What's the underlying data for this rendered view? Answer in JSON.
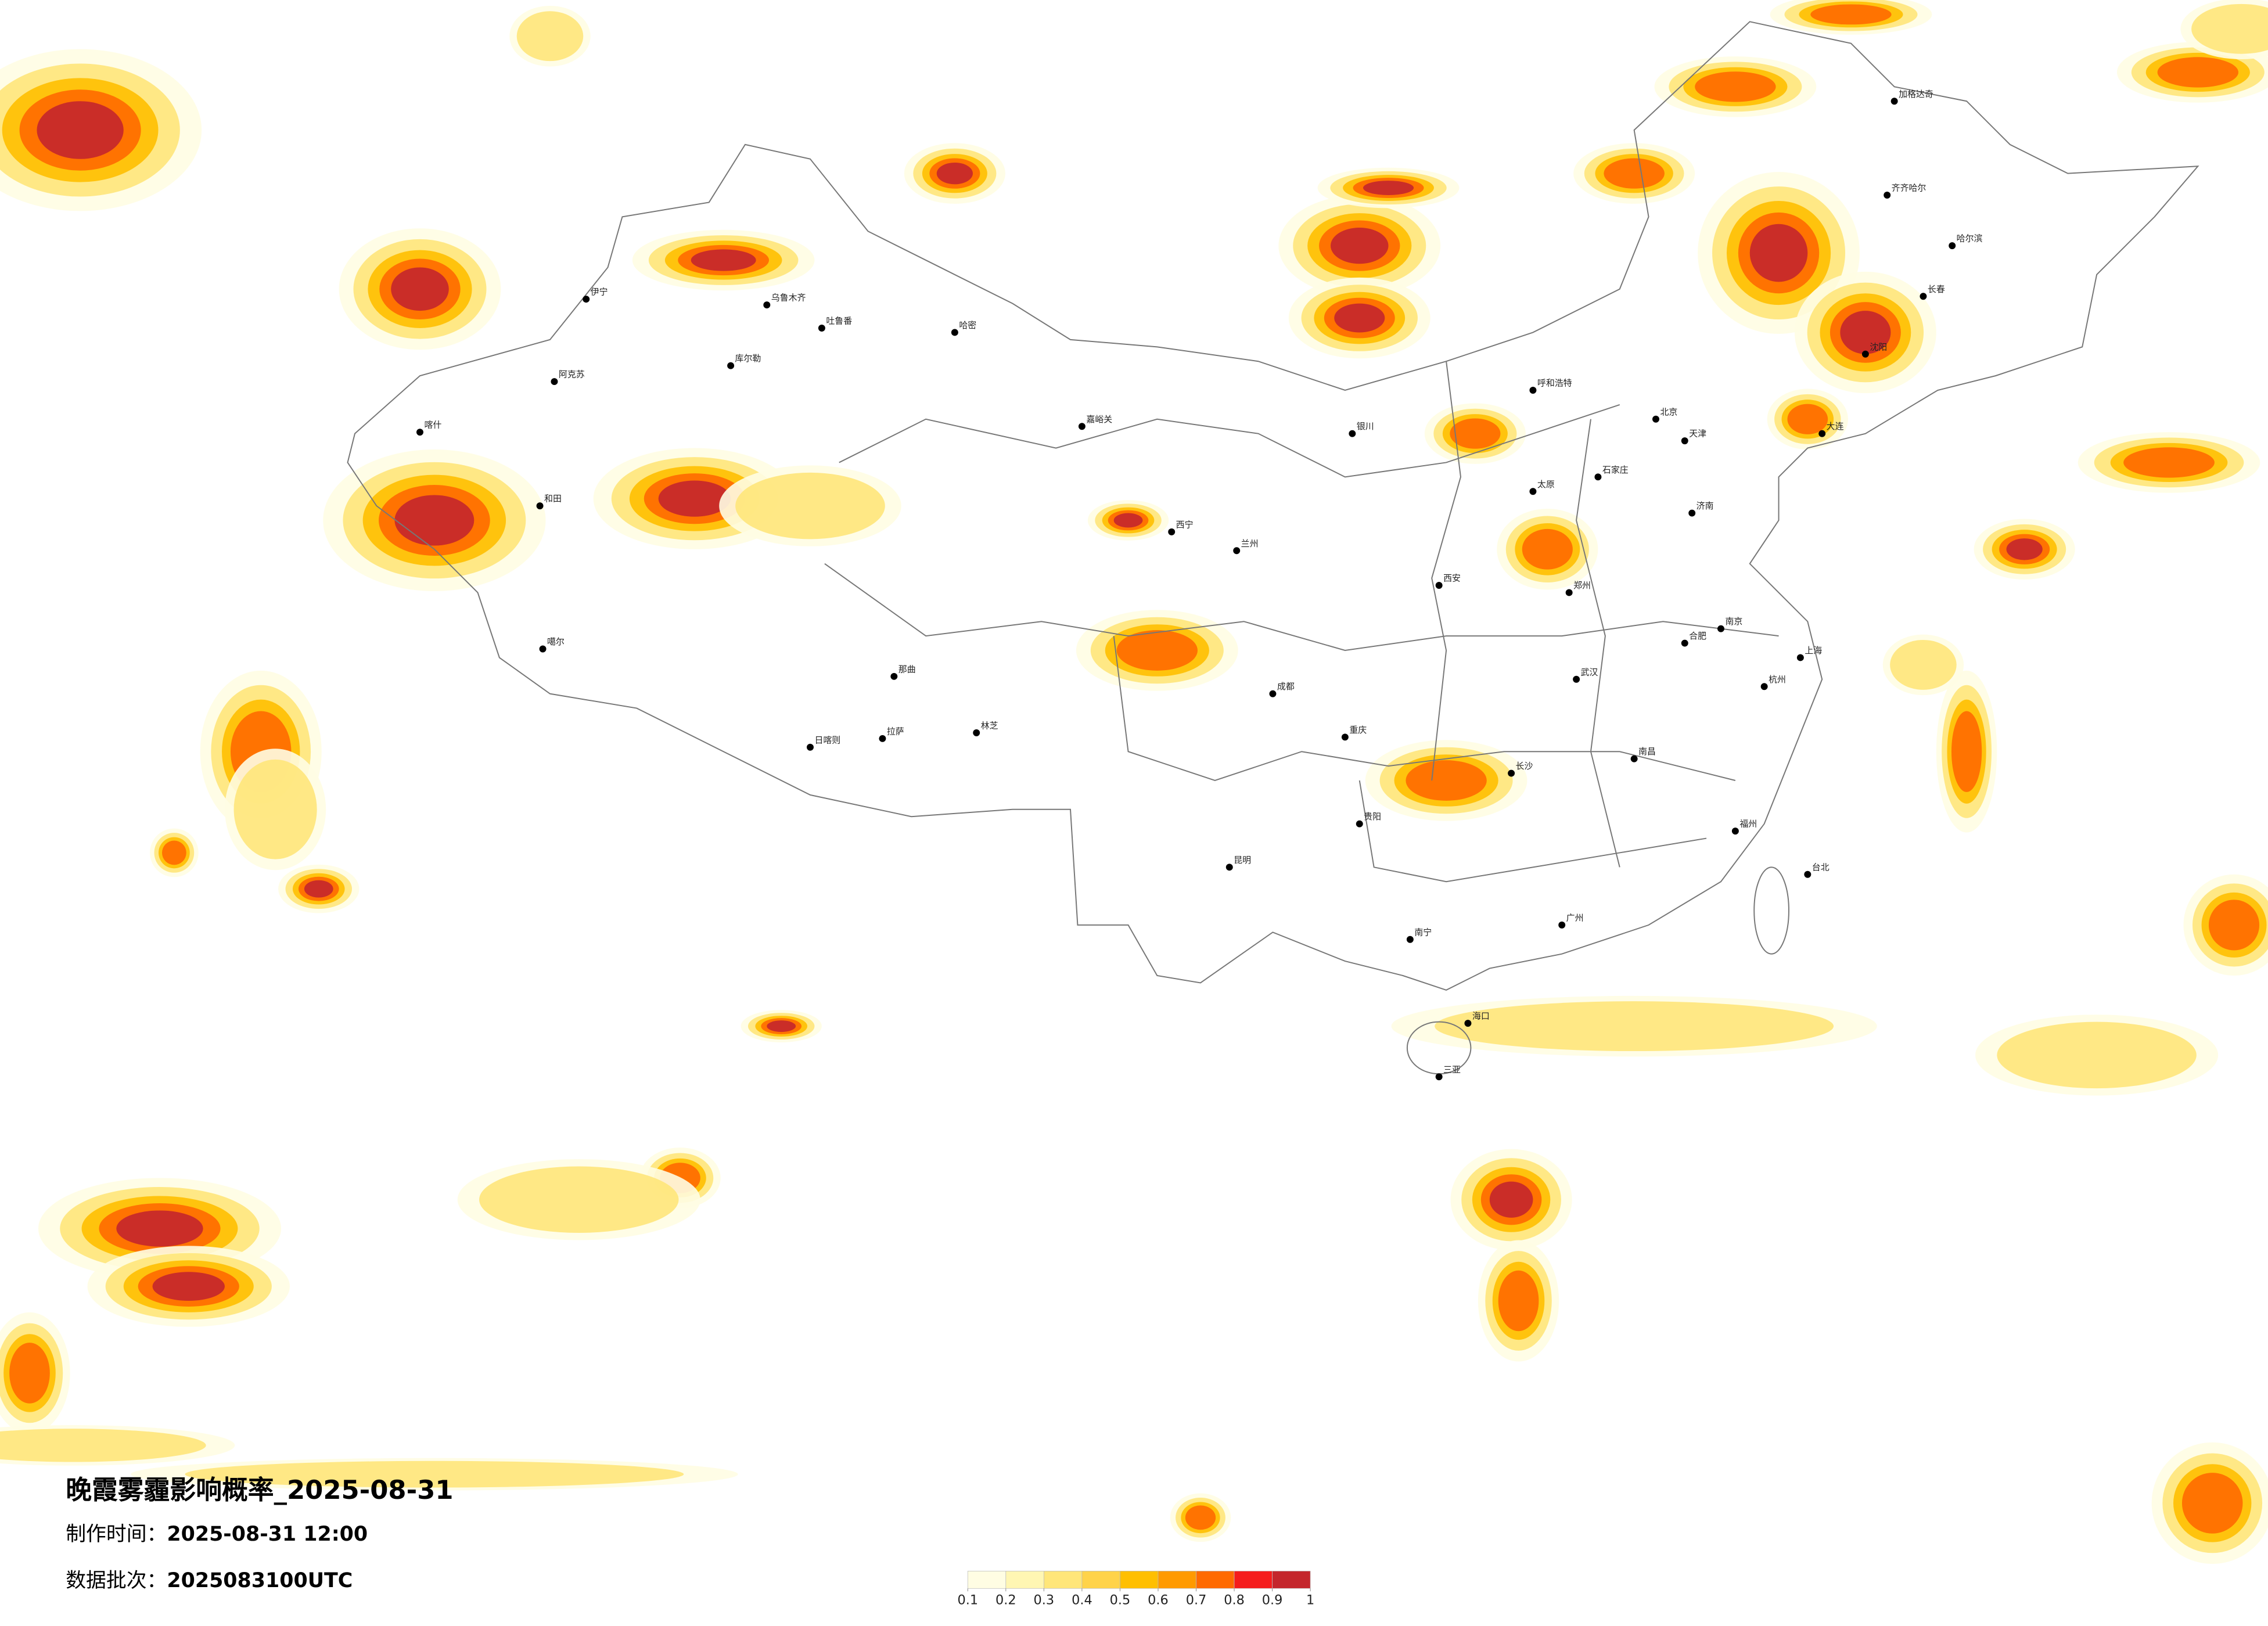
{
  "title": "晚霞雾霾影响概率_2025-08-31",
  "production_time": {
    "label": "制作时间：",
    "value": "2025-08-31 12:00"
  },
  "data_batch": {
    "label": "数据批次：",
    "value": "2025083100UTC"
  },
  "legend": {
    "colors": [
      "#fffde3",
      "#fff6b3",
      "#ffe67a",
      "#ffd34a",
      "#ffbf00",
      "#ff9a00",
      "#ff6a00",
      "#f51c1c",
      "#c4262c"
    ],
    "ticks": [
      0.1,
      0.2,
      0.3,
      0.4,
      0.5,
      0.6,
      0.7,
      0.8,
      0.9,
      1
    ]
  },
  "cities": [
    "伊宁",
    "阿克苏",
    "喀什",
    "和田",
    "乌鲁木齐",
    "吐鲁番",
    "哈密",
    "库尔勒",
    "噶尔",
    "日喀则",
    "拉萨",
    "林芝",
    "那曲",
    "嘉峪关",
    "西宁",
    "兰州",
    "银川",
    "呼和浩特",
    "北京",
    "天津",
    "石家庄",
    "太原",
    "济南",
    "郑州",
    "西安",
    "成都",
    "重庆",
    "贵阳",
    "昆明",
    "南宁",
    "广州",
    "长沙",
    "武汉",
    "南昌",
    "合肥",
    "南京",
    "上海",
    "杭州",
    "福州",
    "台北",
    "海口",
    "三亚",
    "哈尔滨",
    "长春",
    "沈阳",
    "大连",
    "齐齐哈尔",
    "加格达奇"
  ]
}
